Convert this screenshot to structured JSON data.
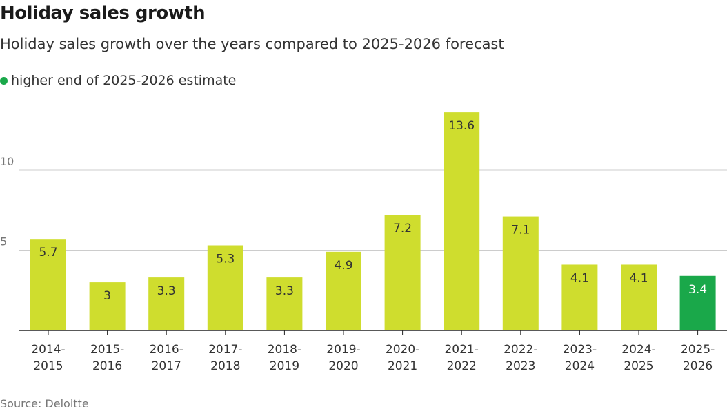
{
  "title": "Holiday sales growth",
  "subtitle": "Holiday sales growth over the years compared to 2025-2026 forecast",
  "legend": {
    "label": "higher end of 2025-2026 estimate",
    "color": "#1aa84a"
  },
  "source": "Source: Deloitte",
  "colors": {
    "bar": "#cfdd2e",
    "highlight": "#1aa84a",
    "grid": "#cccccc",
    "axis": "#222222"
  },
  "chart_data": {
    "type": "bar",
    "title": "Holiday sales growth",
    "xlabel": "",
    "ylabel": "",
    "ylim": [
      0,
      14
    ],
    "yticks": [
      5,
      10
    ],
    "grid": true,
    "categories": [
      [
        "2014-",
        "2015"
      ],
      [
        "2015-",
        "2016"
      ],
      [
        "2016-",
        "2017"
      ],
      [
        "2017-",
        "2018"
      ],
      [
        "2018-",
        "2019"
      ],
      [
        "2019-",
        "2020"
      ],
      [
        "2020-",
        "2021"
      ],
      [
        "2021-",
        "2022"
      ],
      [
        "2022-",
        "2023"
      ],
      [
        "2023-",
        "2024"
      ],
      [
        "2024-",
        "2025"
      ],
      [
        "2025-",
        "2026"
      ]
    ],
    "values": [
      5.7,
      3,
      3.3,
      5.3,
      3.3,
      4.9,
      7.2,
      13.6,
      7.1,
      4.1,
      4.1,
      3.4
    ],
    "value_labels": [
      "5.7",
      "3",
      "3.3",
      "5.3",
      "3.3",
      "4.9",
      "7.2",
      "13.6",
      "7.1",
      "4.1",
      "4.1",
      "3.4"
    ],
    "highlight_index": 11
  }
}
